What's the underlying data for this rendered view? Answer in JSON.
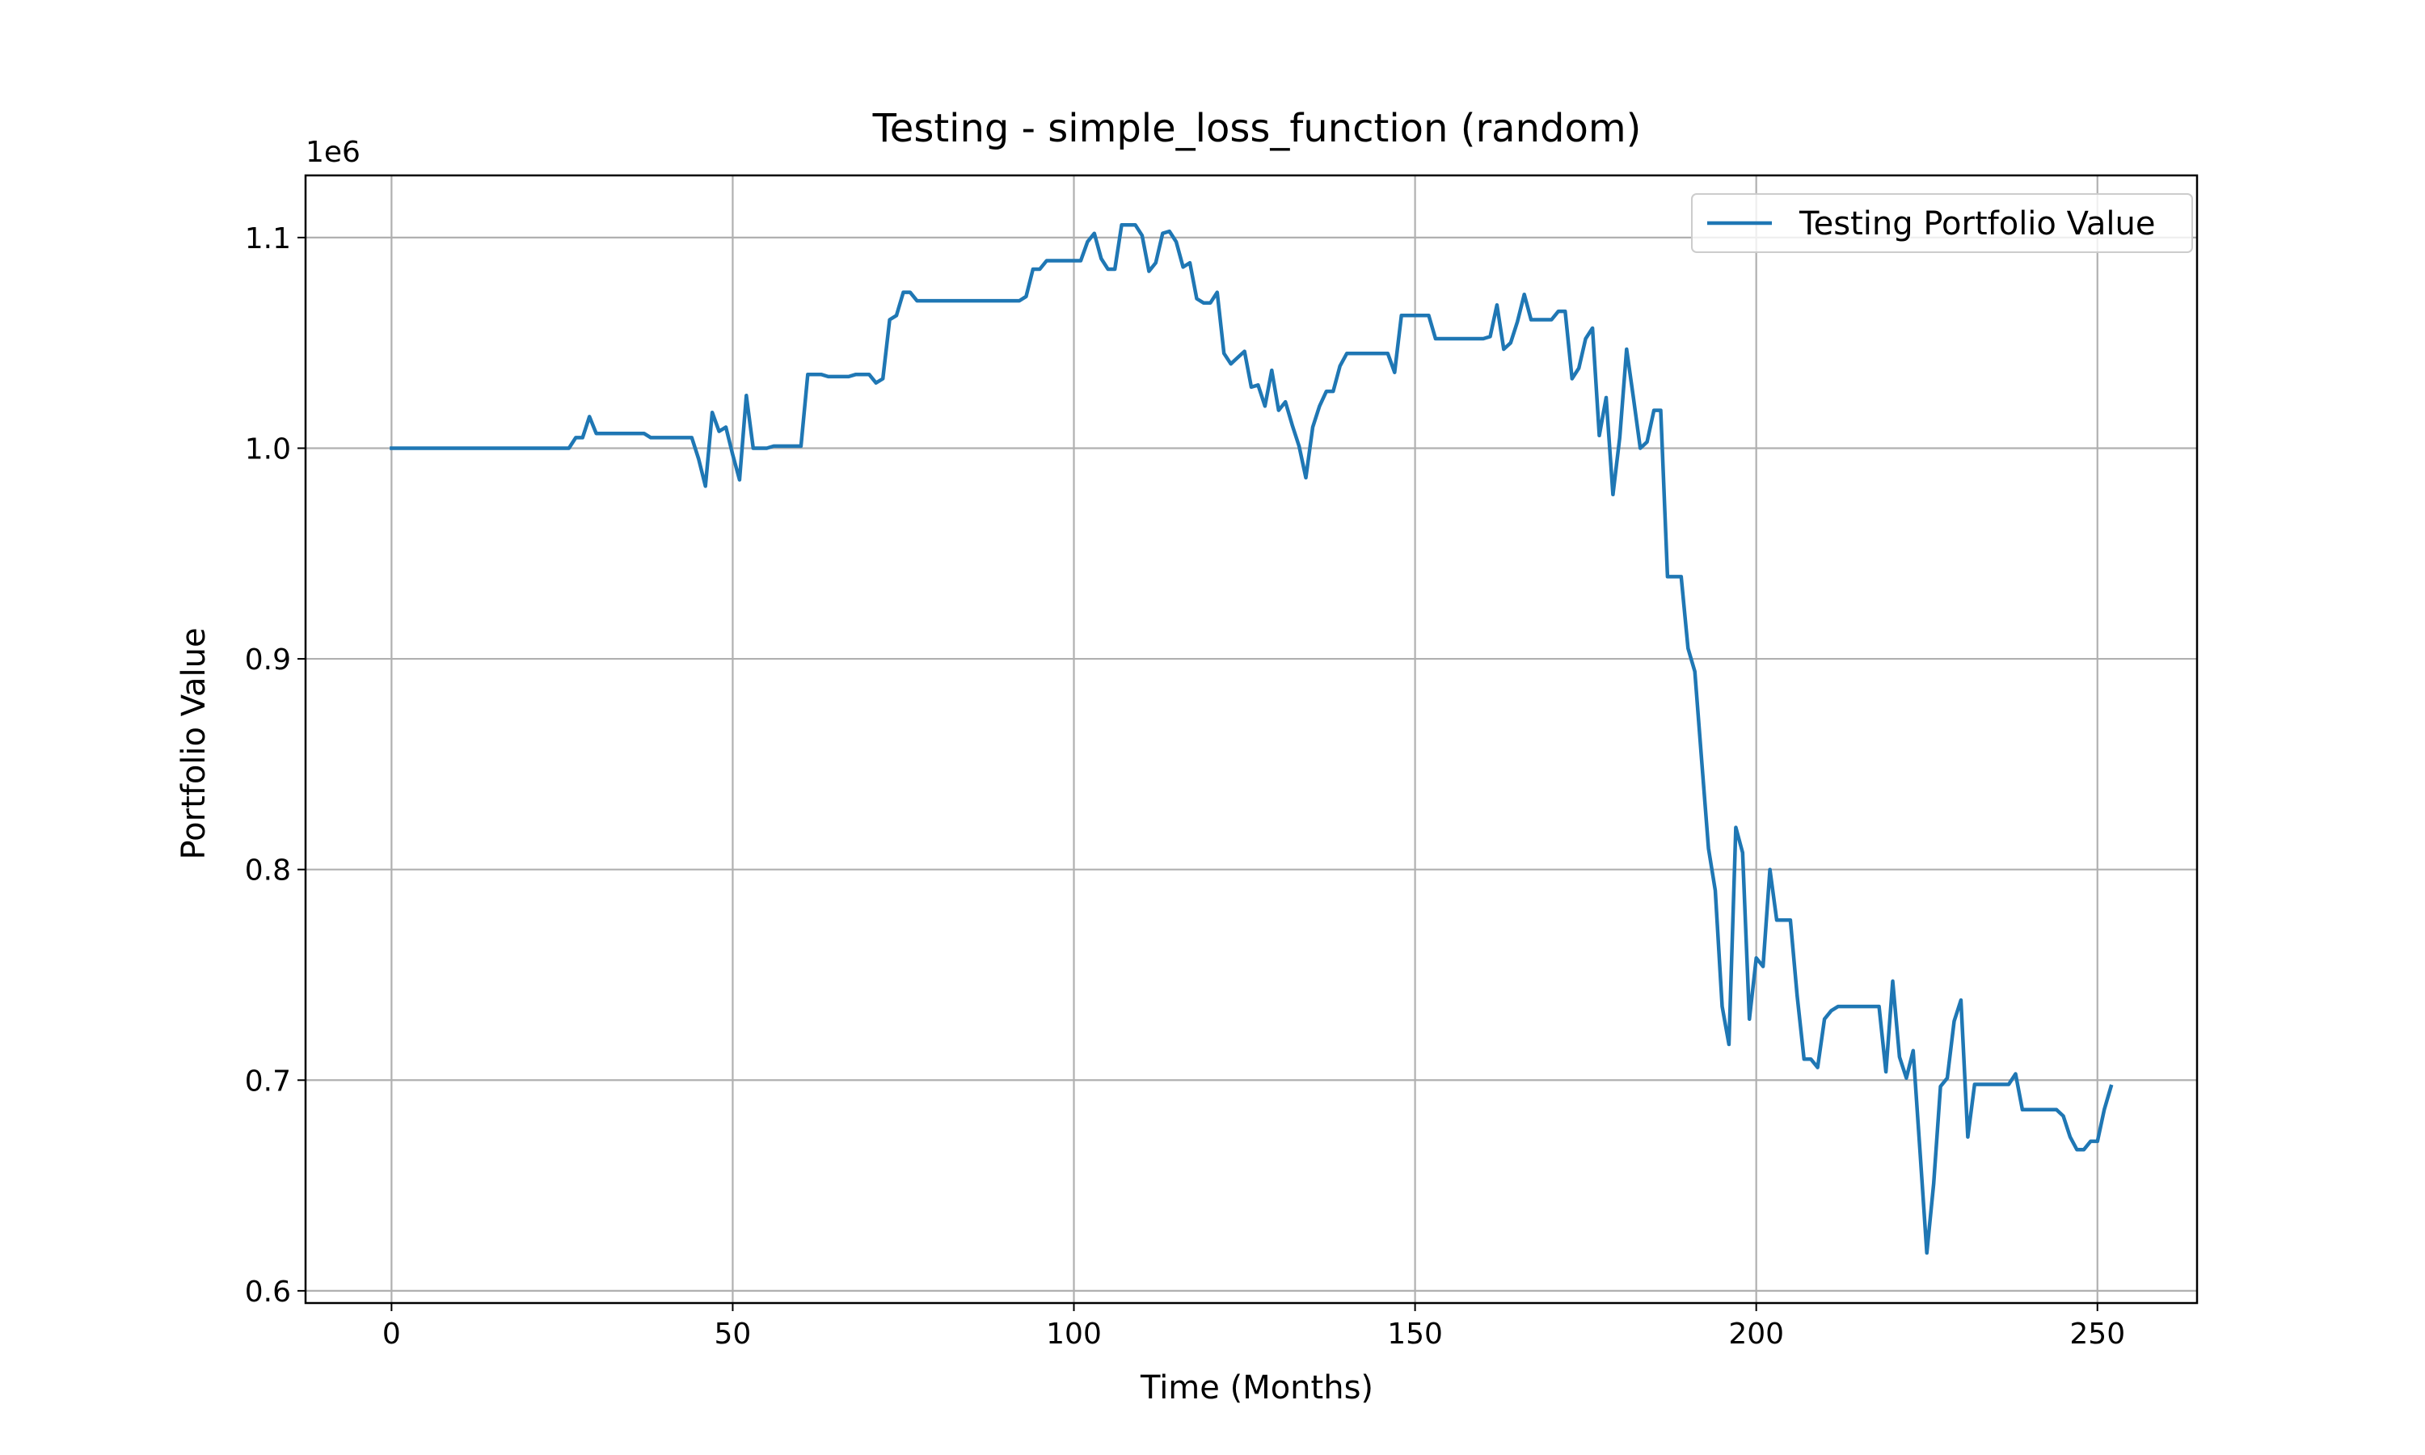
{
  "chart_data": {
    "type": "line",
    "title": "Testing - simple_loss_function (random)",
    "xlabel": "Time (Months)",
    "ylabel": "Portfolio Value",
    "y_scale_label": "1e6",
    "xlim": [
      -12.6,
      264.6
    ],
    "ylim": [
      0.5942,
      1.1295
    ],
    "x_ticks": [
      0,
      50,
      100,
      150,
      200,
      250
    ],
    "x_tick_labels": [
      "0",
      "50",
      "100",
      "150",
      "200",
      "250"
    ],
    "y_ticks": [
      0.6,
      0.7,
      0.8,
      0.9,
      1.0,
      1.1
    ],
    "y_tick_labels": [
      "0.6",
      "0.7",
      "0.8",
      "0.9",
      "1.0",
      "1.1"
    ],
    "grid": true,
    "legend_position": "top-right",
    "series": [
      {
        "name": "Testing Portfolio Value",
        "color": "#1f77b4",
        "points": [
          [
            0,
            1.0
          ],
          [
            10,
            1.0
          ],
          [
            20,
            1.0
          ],
          [
            26,
            1.0
          ],
          [
            27,
            1.005
          ],
          [
            28,
            1.005
          ],
          [
            29,
            1.015
          ],
          [
            30,
            1.007
          ],
          [
            33,
            1.007
          ],
          [
            37,
            1.007
          ],
          [
            38,
            1.005
          ],
          [
            44,
            1.005
          ],
          [
            45,
            0.995
          ],
          [
            46,
            0.982
          ],
          [
            47,
            1.017
          ],
          [
            48,
            1.008
          ],
          [
            49,
            1.01
          ],
          [
            50,
            0.997
          ],
          [
            51,
            0.985
          ],
          [
            52,
            1.025
          ],
          [
            53,
            1.0
          ],
          [
            55,
            1.0
          ],
          [
            56,
            1.001
          ],
          [
            60,
            1.001
          ],
          [
            61,
            1.035
          ],
          [
            63,
            1.035
          ],
          [
            64,
            1.034
          ],
          [
            67,
            1.034
          ],
          [
            68,
            1.035
          ],
          [
            70,
            1.035
          ],
          [
            71,
            1.031
          ],
          [
            72,
            1.033
          ],
          [
            73,
            1.061
          ],
          [
            74,
            1.063
          ],
          [
            75,
            1.074
          ],
          [
            76,
            1.074
          ],
          [
            77,
            1.07
          ],
          [
            90,
            1.07
          ],
          [
            92,
            1.07
          ],
          [
            93,
            1.072
          ],
          [
            94,
            1.085
          ],
          [
            95,
            1.085
          ],
          [
            96,
            1.089
          ],
          [
            101,
            1.089
          ],
          [
            102,
            1.098
          ],
          [
            103,
            1.102
          ],
          [
            104,
            1.09
          ],
          [
            105,
            1.085
          ],
          [
            106,
            1.085
          ],
          [
            107,
            1.106
          ],
          [
            109,
            1.106
          ],
          [
            110,
            1.101
          ],
          [
            111,
            1.084
          ],
          [
            112,
            1.088
          ],
          [
            113,
            1.102
          ],
          [
            114,
            1.103
          ],
          [
            115,
            1.098
          ],
          [
            116,
            1.086
          ],
          [
            117,
            1.088
          ],
          [
            118,
            1.071
          ],
          [
            119,
            1.069
          ],
          [
            120,
            1.069
          ],
          [
            121,
            1.074
          ],
          [
            122,
            1.045
          ],
          [
            123,
            1.04
          ],
          [
            124,
            1.043
          ],
          [
            125,
            1.046
          ],
          [
            126,
            1.029
          ],
          [
            127,
            1.03
          ],
          [
            128,
            1.02
          ],
          [
            129,
            1.037
          ],
          [
            130,
            1.018
          ],
          [
            131,
            1.022
          ],
          [
            132,
            1.011
          ],
          [
            133,
            1.001
          ],
          [
            134,
            0.986
          ],
          [
            135,
            1.01
          ],
          [
            136,
            1.02
          ],
          [
            137,
            1.027
          ],
          [
            138,
            1.027
          ],
          [
            139,
            1.039
          ],
          [
            140,
            1.045
          ],
          [
            146,
            1.045
          ],
          [
            147,
            1.036
          ],
          [
            148,
            1.063
          ],
          [
            152,
            1.063
          ],
          [
            153,
            1.052
          ],
          [
            160,
            1.052
          ],
          [
            161,
            1.053
          ],
          [
            162,
            1.068
          ],
          [
            163,
            1.047
          ],
          [
            164,
            1.05
          ],
          [
            165,
            1.06
          ],
          [
            166,
            1.073
          ],
          [
            167,
            1.061
          ],
          [
            170,
            1.061
          ],
          [
            171,
            1.065
          ],
          [
            172,
            1.065
          ],
          [
            173,
            1.033
          ],
          [
            174,
            1.038
          ],
          [
            175,
            1.052
          ],
          [
            176,
            1.057
          ],
          [
            177,
            1.006
          ],
          [
            178,
            1.024
          ],
          [
            179,
            0.978
          ],
          [
            180,
            1.005
          ],
          [
            181,
            1.047
          ],
          [
            182,
            1.024
          ],
          [
            183,
            1.0
          ],
          [
            184,
            1.003
          ],
          [
            185,
            1.018
          ],
          [
            186,
            1.018
          ],
          [
            187,
            0.939
          ],
          [
            188,
            0.939
          ],
          [
            189,
            0.939
          ],
          [
            190,
            0.905
          ],
          [
            191,
            0.894
          ],
          [
            192,
            0.852
          ],
          [
            193,
            0.81
          ],
          [
            194,
            0.79
          ],
          [
            195,
            0.735
          ],
          [
            196,
            0.717
          ],
          [
            197,
            0.82
          ],
          [
            198,
            0.808
          ],
          [
            199,
            0.729
          ],
          [
            200,
            0.758
          ],
          [
            201,
            0.754
          ],
          [
            202,
            0.8
          ],
          [
            203,
            0.776
          ],
          [
            205,
            0.776
          ],
          [
            206,
            0.74
          ],
          [
            207,
            0.71
          ],
          [
            208,
            0.71
          ],
          [
            209,
            0.706
          ],
          [
            210,
            0.729
          ],
          [
            211,
            0.733
          ],
          [
            212,
            0.735
          ],
          [
            218,
            0.735
          ],
          [
            219,
            0.704
          ],
          [
            220,
            0.747
          ],
          [
            221,
            0.711
          ],
          [
            222,
            0.701
          ],
          [
            223,
            0.714
          ],
          [
            224,
            0.666
          ],
          [
            225,
            0.618
          ],
          [
            226,
            0.651
          ],
          [
            227,
            0.697
          ],
          [
            228,
            0.701
          ],
          [
            229,
            0.728
          ],
          [
            230,
            0.738
          ],
          [
            231,
            0.673
          ],
          [
            232,
            0.698
          ],
          [
            237,
            0.698
          ],
          [
            238,
            0.703
          ],
          [
            239,
            0.686
          ],
          [
            244,
            0.686
          ],
          [
            245,
            0.683
          ],
          [
            246,
            0.673
          ],
          [
            247,
            0.667
          ],
          [
            248,
            0.667
          ],
          [
            249,
            0.671
          ],
          [
            250,
            0.671
          ],
          [
            251,
            0.686
          ],
          [
            252,
            0.697
          ]
        ]
      }
    ]
  }
}
